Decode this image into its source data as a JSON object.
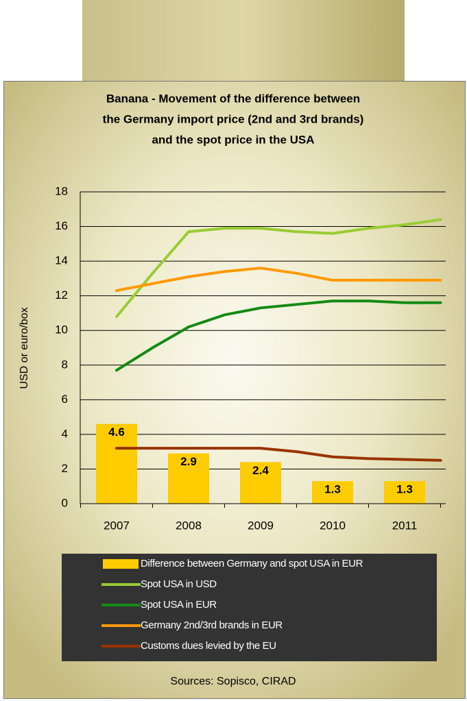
{
  "chart_data": {
    "type": "bar",
    "title": [
      "Banana - Movement of the difference between",
      "the Germany import price (2nd and 3rd brands)",
      "and the spot price in the USA"
    ],
    "y_label": "USD or euro/box",
    "source": "Sources: Sopisco, CIRAD",
    "categories": [
      "2007",
      "2008",
      "2009",
      "2010",
      "2011"
    ],
    "x": [
      2007,
      2007.5,
      2008,
      2008.5,
      2009,
      2009.5,
      2010,
      2010.5,
      2011,
      2011.5
    ],
    "ylim": [
      0,
      18
    ],
    "yticks": [
      0,
      2,
      4,
      6,
      8,
      10,
      12,
      14,
      16,
      18
    ],
    "grid": true,
    "series": [
      {
        "type": "bar",
        "name": "Difference between Germany and spot USA in EUR",
        "color": "#ffcc00",
        "values": [
          4.6,
          2.9,
          2.4,
          1.3,
          1.3
        ]
      },
      {
        "type": "line",
        "name": "Spot USA in USD",
        "color": "#99cc33",
        "values": [
          10.8,
          13.3,
          15.7,
          15.9,
          15.9,
          15.7,
          15.6,
          15.9,
          16.1,
          16.4
        ]
      },
      {
        "type": "line",
        "name": "Spot USA in EUR",
        "color": "#158a15",
        "values": [
          7.7,
          9.0,
          10.2,
          10.9,
          11.3,
          11.5,
          11.7,
          11.7,
          11.6,
          11.6
        ]
      },
      {
        "type": "line",
        "name": "Germany 2nd/3rd brands in EUR",
        "color": "#ff9900",
        "values": [
          12.3,
          12.7,
          13.1,
          13.4,
          13.6,
          13.3,
          12.9,
          12.9,
          12.9,
          12.9
        ]
      },
      {
        "type": "line",
        "name": "Customs dues levied by the EU",
        "color": "#993300",
        "values": [
          3.2,
          3.2,
          3.2,
          3.2,
          3.2,
          3.0,
          2.7,
          2.6,
          2.55,
          2.5
        ]
      }
    ]
  }
}
